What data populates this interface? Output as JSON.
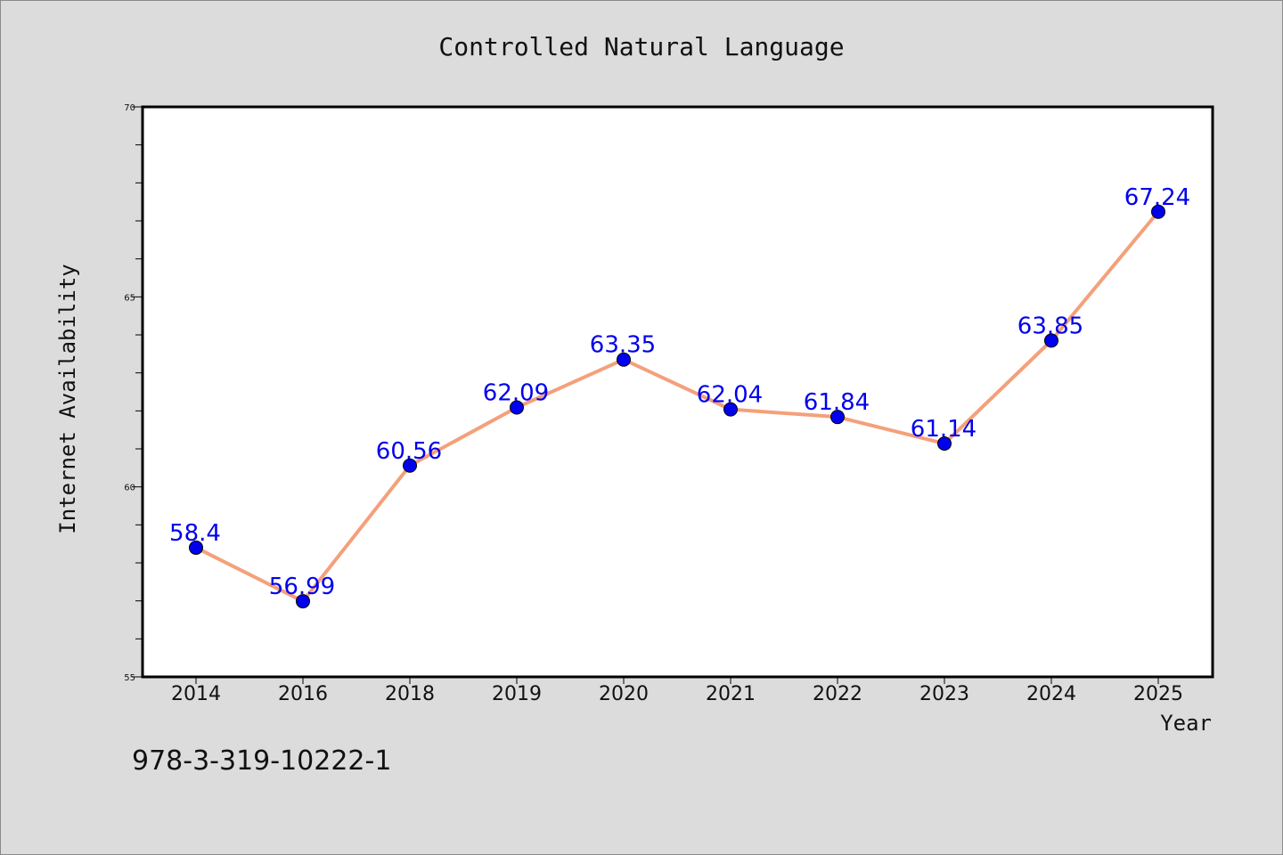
{
  "chart_data": {
    "type": "line",
    "title": "Controlled Natural Language",
    "xlabel": "Year",
    "ylabel": "Internet Availability",
    "categories": [
      "2014",
      "2016",
      "2018",
      "2019",
      "2020",
      "2021",
      "2022",
      "2023",
      "2024",
      "2025"
    ],
    "series": [
      {
        "values": [
          58.4,
          56.99,
          60.56,
          62.09,
          63.35,
          62.04,
          61.84,
          61.14,
          63.85,
          67.24
        ],
        "labels": [
          "58.4",
          "56.99",
          "60.56",
          "62.09",
          "63.35",
          "62.04",
          "61.84",
          "61.14",
          "63.85",
          "67.24"
        ],
        "line_color": "#f4a07a",
        "marker_color": "#0000ee"
      }
    ],
    "ylim": [
      55,
      70
    ],
    "yticks": [
      55,
      60,
      65,
      70
    ],
    "ytick_labels": [
      "55",
      "60",
      "65",
      "70"
    ],
    "grid": false,
    "legend": "none",
    "label_color": "#0000ee"
  },
  "footer": {
    "isbn": "978-3-319-10222-1"
  }
}
